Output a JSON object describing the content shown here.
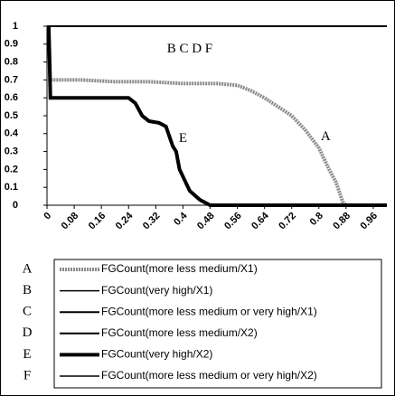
{
  "chart_data": {
    "type": "line",
    "xlim": [
      0,
      1
    ],
    "ylim": [
      0,
      1
    ],
    "xticks": [
      0,
      0.08,
      0.16,
      0.24,
      0.32,
      0.4,
      0.48,
      0.56,
      0.64,
      0.72,
      0.8,
      0.88,
      0.96
    ],
    "yticks": [
      0,
      0.1,
      0.2,
      0.3,
      0.4,
      0.5,
      0.6,
      0.7,
      0.8,
      0.9,
      1
    ],
    "grid": false,
    "annotations": [
      {
        "text": "B C D F",
        "x": 0.42,
        "y": 0.87
      },
      {
        "text": "E",
        "x": 0.4,
        "y": 0.37
      },
      {
        "text": "A",
        "x": 0.82,
        "y": 0.38
      }
    ],
    "series": [
      {
        "label": "A",
        "name": "FGCount(more less medium/X1)",
        "color": "#8a8a8a",
        "width": 4,
        "x": [
          0.005,
          0.01,
          0.1,
          0.2,
          0.3,
          0.4,
          0.5,
          0.56,
          0.6,
          0.64,
          0.68,
          0.72,
          0.76,
          0.8,
          0.83,
          0.85,
          0.87,
          0.88,
          1
        ],
        "values": [
          1,
          0.7,
          0.7,
          0.69,
          0.69,
          0.68,
          0.68,
          0.67,
          0.64,
          0.6,
          0.55,
          0.5,
          0.42,
          0.32,
          0.2,
          0.13,
          0.02,
          0,
          0
        ]
      },
      {
        "label": "B",
        "name": "FGCount(very high/X1)",
        "color": "#000000",
        "width": 1.5,
        "x": [
          0,
          1
        ],
        "values": [
          1,
          1
        ]
      },
      {
        "label": "C",
        "name": "FGCount(more less medium or very high/X1)",
        "color": "#000000",
        "width": 2,
        "x": [
          0,
          1
        ],
        "values": [
          1,
          1
        ]
      },
      {
        "label": "D",
        "name": "FGCount(more less medium/X2)",
        "color": "#000000",
        "width": 2,
        "x": [
          0,
          1
        ],
        "values": [
          1,
          1
        ]
      },
      {
        "label": "E",
        "name": "FGCount(very high/X2)",
        "color": "#000000",
        "width": 4,
        "x": [
          0.005,
          0.01,
          0.2,
          0.24,
          0.26,
          0.28,
          0.3,
          0.33,
          0.35,
          0.37,
          0.38,
          0.39,
          0.4,
          0.42,
          0.45,
          0.48,
          1
        ],
        "values": [
          1,
          0.6,
          0.6,
          0.6,
          0.57,
          0.5,
          0.47,
          0.46,
          0.44,
          0.33,
          0.3,
          0.2,
          0.16,
          0.08,
          0.03,
          0,
          0
        ]
      },
      {
        "label": "F",
        "name": "FGCount(more less medium or very high/X2)",
        "color": "#000000",
        "width": 1.5,
        "x": [
          0,
          1
        ],
        "values": [
          1,
          1
        ]
      }
    ]
  }
}
